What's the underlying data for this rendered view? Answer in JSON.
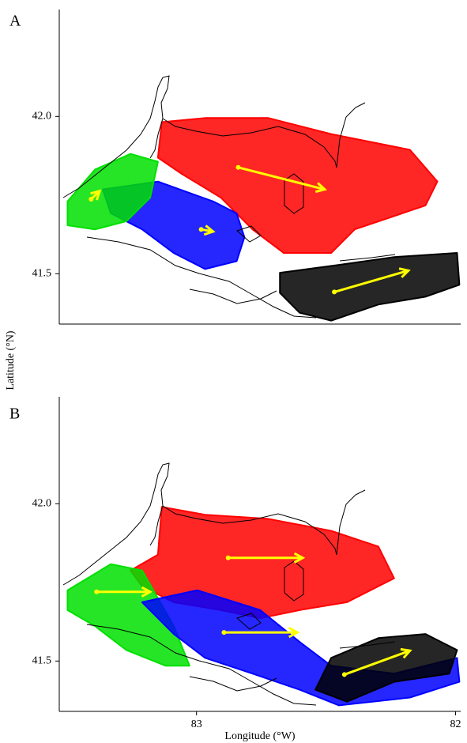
{
  "chart_data": [
    {
      "type": "map",
      "panel": "A",
      "ylabel": "Latitude (°N)",
      "xlim": [
        83.53,
        81.98
      ],
      "ylim": [
        41.34,
        42.34
      ],
      "yticks": [
        {
          "value": 42.0,
          "label": "42.0"
        },
        {
          "value": 41.5,
          "label": "41.5"
        }
      ],
      "series": [
        {
          "color": "#ff0000",
          "x": [
            83.134,
            82.967,
            82.723,
            82.48,
            82.176,
            82.07,
            82.116,
            82.389,
            82.48,
            82.663,
            82.784,
            82.906,
            83.058,
            83.149
          ],
          "y": [
            41.982,
            41.995,
            41.995,
            41.944,
            41.894,
            41.793,
            41.717,
            41.641,
            41.566,
            41.566,
            41.641,
            41.742,
            41.818,
            41.869
          ]
        },
        {
          "color": "#0000ff",
          "x": [
            83.362,
            83.149,
            82.936,
            82.845,
            82.815,
            82.845,
            82.967,
            83.088,
            83.21,
            83.331
          ],
          "y": [
            41.768,
            41.793,
            41.73,
            41.692,
            41.616,
            41.54,
            41.515,
            41.566,
            41.641,
            41.692
          ]
        },
        {
          "color": "#00e000",
          "x": [
            83.498,
            83.392,
            83.255,
            83.149,
            83.179,
            83.271,
            83.392,
            83.498
          ],
          "y": [
            41.73,
            41.831,
            41.881,
            41.856,
            41.742,
            41.667,
            41.641,
            41.654
          ]
        },
        {
          "color": "#000000",
          "x": [
            82.678,
            82.45,
            82.237,
            81.994,
            81.985,
            82.116,
            82.298,
            82.48,
            82.602,
            82.678
          ],
          "y": [
            41.503,
            41.528,
            41.553,
            41.566,
            41.465,
            41.427,
            41.402,
            41.351,
            41.376,
            41.439
          ]
        }
      ],
      "arrow_color": "#ffff00",
      "arrows": [
        {
          "from": [
            82.839,
            41.838
          ],
          "to": [
            82.505,
            41.768
          ]
        },
        {
          "from": [
            82.468,
            41.442
          ],
          "to": [
            82.182,
            41.51
          ]
        },
        {
          "from": [
            83.407,
            41.737
          ],
          "to": [
            83.374,
            41.763
          ]
        },
        {
          "from": [
            82.982,
            41.641
          ],
          "to": [
            82.936,
            41.634
          ]
        }
      ]
    },
    {
      "type": "map",
      "panel": "B",
      "xlabel": "Longitude (°W)",
      "xlim": [
        83.53,
        81.98
      ],
      "ylim": [
        41.34,
        42.34
      ],
      "xticks": [
        83,
        82
      ],
      "yticks": [
        {
          "value": 42.0,
          "label": "42.0"
        },
        {
          "value": 41.5,
          "label": "41.5"
        }
      ],
      "series": [
        {
          "color": "#ff0000",
          "x": [
            83.134,
            82.967,
            82.723,
            82.48,
            82.298,
            82.237,
            82.419,
            82.602,
            82.754,
            82.906,
            83.088,
            83.21,
            83.255,
            83.149
          ],
          "y": [
            41.99,
            41.965,
            41.952,
            41.914,
            41.864,
            41.763,
            41.687,
            41.662,
            41.636,
            41.662,
            41.687,
            41.737,
            41.788,
            41.838
          ]
        },
        {
          "color": "#00e000",
          "x": [
            83.498,
            83.331,
            83.21,
            83.088,
            83.027,
            83.119,
            83.271,
            83.392,
            83.498
          ],
          "y": [
            41.725,
            41.808,
            41.788,
            41.611,
            41.485,
            41.485,
            41.535,
            41.611,
            41.662
          ]
        },
        {
          "color": "#0000ff",
          "x": [
            83.21,
            82.997,
            82.754,
            82.602,
            82.48,
            82.237,
            81.994,
            81.985,
            82.176,
            82.45,
            82.602,
            82.784,
            82.967,
            83.088
          ],
          "y": [
            41.687,
            41.725,
            41.662,
            41.561,
            41.485,
            41.46,
            41.51,
            41.434,
            41.384,
            41.359,
            41.409,
            41.46,
            41.51,
            41.586
          ]
        },
        {
          "color": "#000000",
          "x": [
            82.48,
            82.298,
            82.116,
            81.994,
            82.024,
            82.237,
            82.419,
            82.541
          ],
          "y": [
            41.51,
            41.573,
            41.586,
            41.535,
            41.46,
            41.434,
            41.371,
            41.409
          ]
        }
      ],
      "arrow_color": "#ffff00",
      "arrows": [
        {
          "from": [
            82.878,
            41.828
          ],
          "to": [
            82.59,
            41.828
          ]
        },
        {
          "from": [
            83.386,
            41.72
          ],
          "to": [
            83.179,
            41.72
          ]
        },
        {
          "from": [
            82.894,
            41.591
          ],
          "to": [
            82.611,
            41.591
          ]
        },
        {
          "from": [
            82.429,
            41.457
          ],
          "to": [
            82.176,
            41.533
          ]
        }
      ]
    }
  ]
}
